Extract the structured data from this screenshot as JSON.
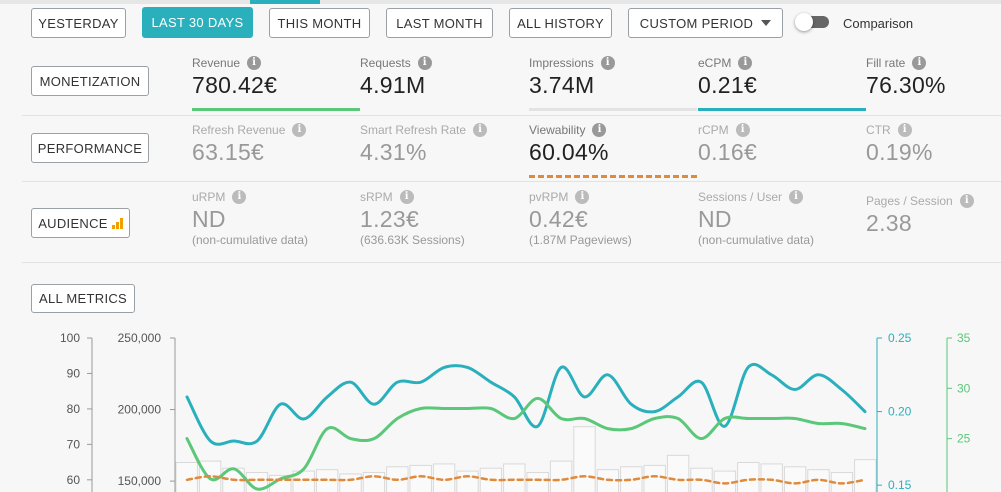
{
  "periods": [
    "YESTERDAY",
    "LAST 30 DAYS",
    "THIS MONTH",
    "LAST MONTH",
    "ALL HISTORY"
  ],
  "custom_period_label": "CUSTOM PERIOD",
  "comparison_label": "Comparison",
  "comparison_enabled": false,
  "active_period": "LAST 30 DAYS",
  "colors": {
    "accent": "#2ab0bd",
    "green": "#5bc779",
    "orange": "#e08a3c",
    "bars": "#d9d9d9"
  },
  "sections": {
    "monetization": {
      "label": "MONETIZATION",
      "metrics": [
        {
          "label": "Revenue",
          "value": "780.42€"
        },
        {
          "label": "Requests",
          "value": "4.91M"
        },
        {
          "label": "Impressions",
          "value": "3.74M"
        },
        {
          "label": "eCPM",
          "value": "0.21€"
        },
        {
          "label": "Fill rate",
          "value": "76.30%"
        }
      ]
    },
    "performance": {
      "label": "PERFORMANCE",
      "metrics": [
        {
          "label": "Refresh Revenue",
          "value": "63.15€"
        },
        {
          "label": "Smart Refresh Rate",
          "value": "4.31%"
        },
        {
          "label": "Viewability",
          "value": "60.04%"
        },
        {
          "label": "rCPM",
          "value": "0.16€"
        },
        {
          "label": "CTR",
          "value": "0.19%"
        }
      ]
    },
    "audience": {
      "label": "AUDIENCE",
      "metrics": [
        {
          "label": "uRPM",
          "value": "ND",
          "sub": "(non-cumulative data)"
        },
        {
          "label": "sRPM",
          "value": "1.23€",
          "sub": "(636.63K Sessions)"
        },
        {
          "label": "pvRPM",
          "value": "0.42€",
          "sub": "(1.87M Pageviews)"
        },
        {
          "label": "Sessions / User",
          "value": "ND",
          "sub": "(non-cumulative data)"
        },
        {
          "label": "Pages / Session",
          "value": "2.38"
        }
      ]
    }
  },
  "all_metrics_label": "ALL METRICS",
  "chart_data": {
    "type": "line",
    "y_axes": [
      {
        "side": "left-1",
        "ticks": [
          "100",
          "90",
          "80",
          "70",
          "60"
        ],
        "range": [
          56,
          100
        ]
      },
      {
        "side": "left-2",
        "ticks": [
          "250,000",
          "200,000",
          "150,000"
        ],
        "range": [
          141000,
          250000
        ]
      },
      {
        "side": "right-1",
        "ticks": [
          "0.25",
          "0.20",
          "0.15"
        ],
        "range": [
          0.144,
          0.25
        ]
      },
      {
        "side": "right-2",
        "ticks": [
          "35",
          "30",
          "25"
        ],
        "range": [
          19.5,
          35
        ]
      }
    ],
    "series": [
      {
        "axis": "right-1",
        "color": "#2ab0bd",
        "style": "line",
        "values": [
          0.21,
          0.18,
          0.18,
          0.18,
          0.205,
          0.195,
          0.21,
          0.22,
          0.205,
          0.22,
          0.22,
          0.23,
          0.23,
          0.22,
          0.21,
          0.19,
          0.23,
          0.21,
          0.225,
          0.205,
          0.2,
          0.21,
          0.22,
          0.19,
          0.23,
          0.225,
          0.215,
          0.225,
          0.215,
          0.2
        ]
      },
      {
        "axis": "right-2",
        "color": "#5bc779",
        "style": "line",
        "values": [
          25,
          21,
          22,
          20,
          21,
          22,
          26,
          25,
          25,
          27,
          28,
          28,
          28,
          28,
          27,
          29,
          27,
          27,
          26,
          26,
          27,
          27,
          25,
          27,
          27,
          27,
          27,
          26.5,
          26.5,
          26
        ]
      },
      {
        "axis": "left-1",
        "color": "#e08a3c",
        "style": "dashed",
        "values": [
          60,
          61,
          60,
          60,
          60,
          60,
          60,
          60,
          61,
          60,
          61,
          60,
          61,
          60,
          60,
          60,
          60,
          61,
          60,
          60,
          61,
          60,
          60,
          59,
          60,
          60,
          59,
          60,
          59,
          60
        ]
      },
      {
        "axis": "left-2",
        "color": "#d9d9d9",
        "style": "bar",
        "values": [
          163000,
          164000,
          159000,
          156000,
          154000,
          157000,
          158000,
          155000,
          156000,
          160000,
          161000,
          162000,
          157000,
          159000,
          162000,
          156000,
          164000,
          188000,
          158000,
          160000,
          161000,
          168000,
          159000,
          157000,
          163000,
          162000,
          160000,
          158000,
          156000,
          165000
        ]
      }
    ]
  }
}
